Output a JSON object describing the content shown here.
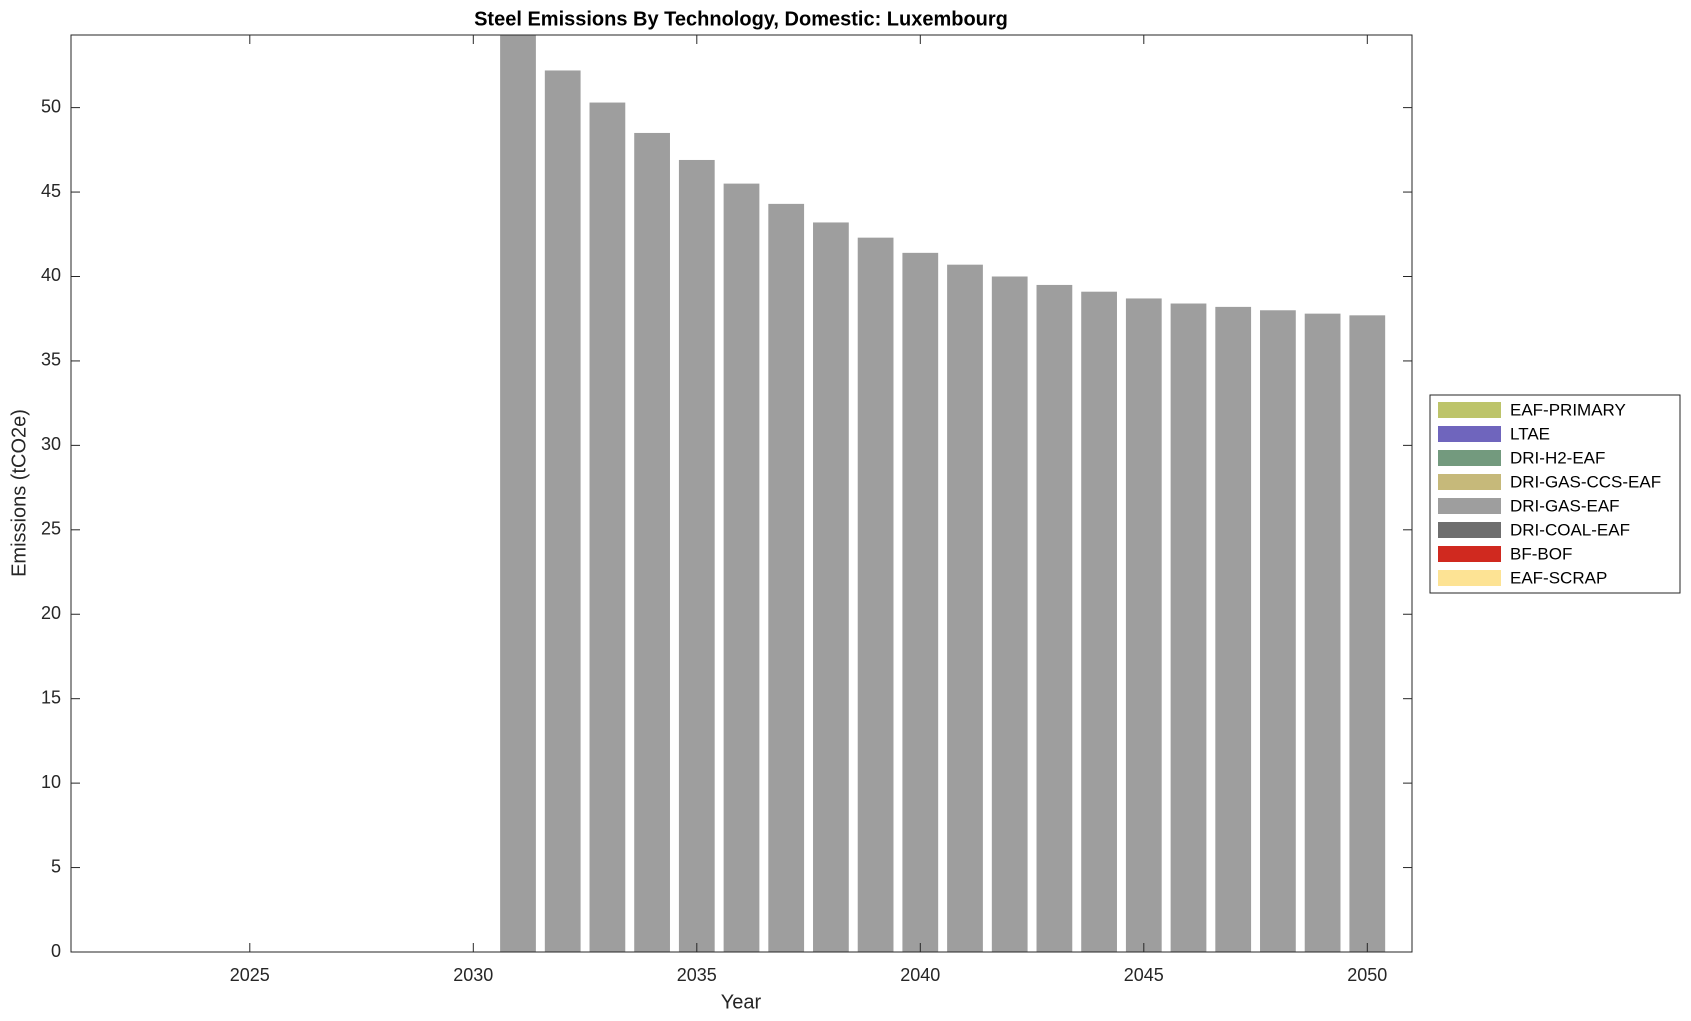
{
  "chart_data": {
    "type": "bar",
    "stacked": true,
    "title": "Steel Emissions By Technology, Domestic: Luxembourg",
    "x_label": "Year",
    "y_label": "Emissions (tCO2e)",
    "x": [
      2031,
      2032,
      2033,
      2034,
      2035,
      2036,
      2037,
      2038,
      2039,
      2040,
      2041,
      2042,
      2043,
      2044,
      2045,
      2046,
      2047,
      2048,
      2049,
      2050
    ],
    "series": [
      {
        "name": "EAF-PRIMARY",
        "color": "#bdc46a",
        "values": [
          0,
          0,
          0,
          0,
          0,
          0,
          0,
          0,
          0,
          0,
          0,
          0,
          0,
          0,
          0,
          0,
          0,
          0,
          0,
          0
        ]
      },
      {
        "name": "LTAE",
        "color": "#6f65bd",
        "values": [
          0,
          0,
          0,
          0,
          0,
          0,
          0,
          0,
          0,
          0,
          0,
          0,
          0,
          0,
          0,
          0,
          0,
          0,
          0,
          0
        ]
      },
      {
        "name": "DRI-H2-EAF",
        "color": "#739a7e",
        "values": [
          0,
          0,
          0,
          0,
          0,
          0,
          0,
          0,
          0,
          0,
          0,
          0,
          0,
          0,
          0,
          0,
          0,
          0,
          0,
          0
        ]
      },
      {
        "name": "DRI-GAS-CCS-EAF",
        "color": "#c6b97a",
        "values": [
          0,
          0,
          0,
          0,
          0,
          0,
          0,
          0,
          0,
          0,
          0,
          0,
          0,
          0,
          0,
          0,
          0,
          0,
          0,
          0
        ]
      },
      {
        "name": "DRI-GAS-EAF",
        "color": "#9e9e9e",
        "values": [
          54.3,
          52.2,
          50.3,
          48.5,
          46.9,
          45.5,
          44.3,
          43.2,
          42.3,
          41.4,
          40.7,
          40.0,
          39.5,
          39.1,
          38.7,
          38.4,
          38.2,
          38.0,
          37.8,
          37.7
        ]
      },
      {
        "name": "DRI-COAL-EAF",
        "color": "#6e6e6e",
        "values": [
          0,
          0,
          0,
          0,
          0,
          0,
          0,
          0,
          0,
          0,
          0,
          0,
          0,
          0,
          0,
          0,
          0,
          0,
          0,
          0
        ]
      },
      {
        "name": "BF-BOF",
        "color": "#d0291f",
        "values": [
          0,
          0,
          0,
          0,
          0,
          0,
          0,
          0,
          0,
          0,
          0,
          0,
          0,
          0,
          0,
          0,
          0,
          0,
          0,
          0
        ]
      },
      {
        "name": "EAF-SCRAP",
        "color": "#fde394",
        "values": [
          0,
          0,
          0,
          0,
          0,
          0,
          0,
          0,
          0,
          0,
          0,
          0,
          0,
          0,
          0,
          0,
          0,
          0,
          0,
          0
        ]
      }
    ],
    "xlim": [
      2021,
      2051
    ],
    "xticks": [
      2025,
      2030,
      2035,
      2040,
      2045,
      2050
    ],
    "ylim": [
      0,
      54.3
    ],
    "yticks": [
      0,
      5,
      10,
      15,
      20,
      25,
      30,
      35,
      40,
      45,
      50
    ],
    "legend": "right"
  }
}
